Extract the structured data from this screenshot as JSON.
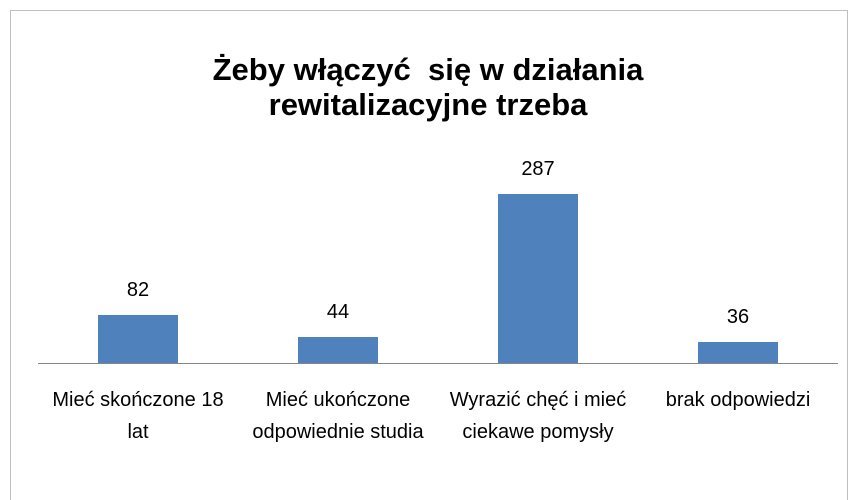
{
  "chart_data": {
    "type": "bar",
    "title": "Żeby włączyć  się w działania rewitalizacyjne trzeba",
    "categories": [
      "Mieć skończone 18 lat",
      "Mieć ukończone odpowiednie studia",
      "Wyrazić chęć i mieć ciekawe pomysły",
      "brak odpowiedzi"
    ],
    "values": [
      82,
      44,
      287,
      36
    ],
    "color": "#4f81bd"
  }
}
